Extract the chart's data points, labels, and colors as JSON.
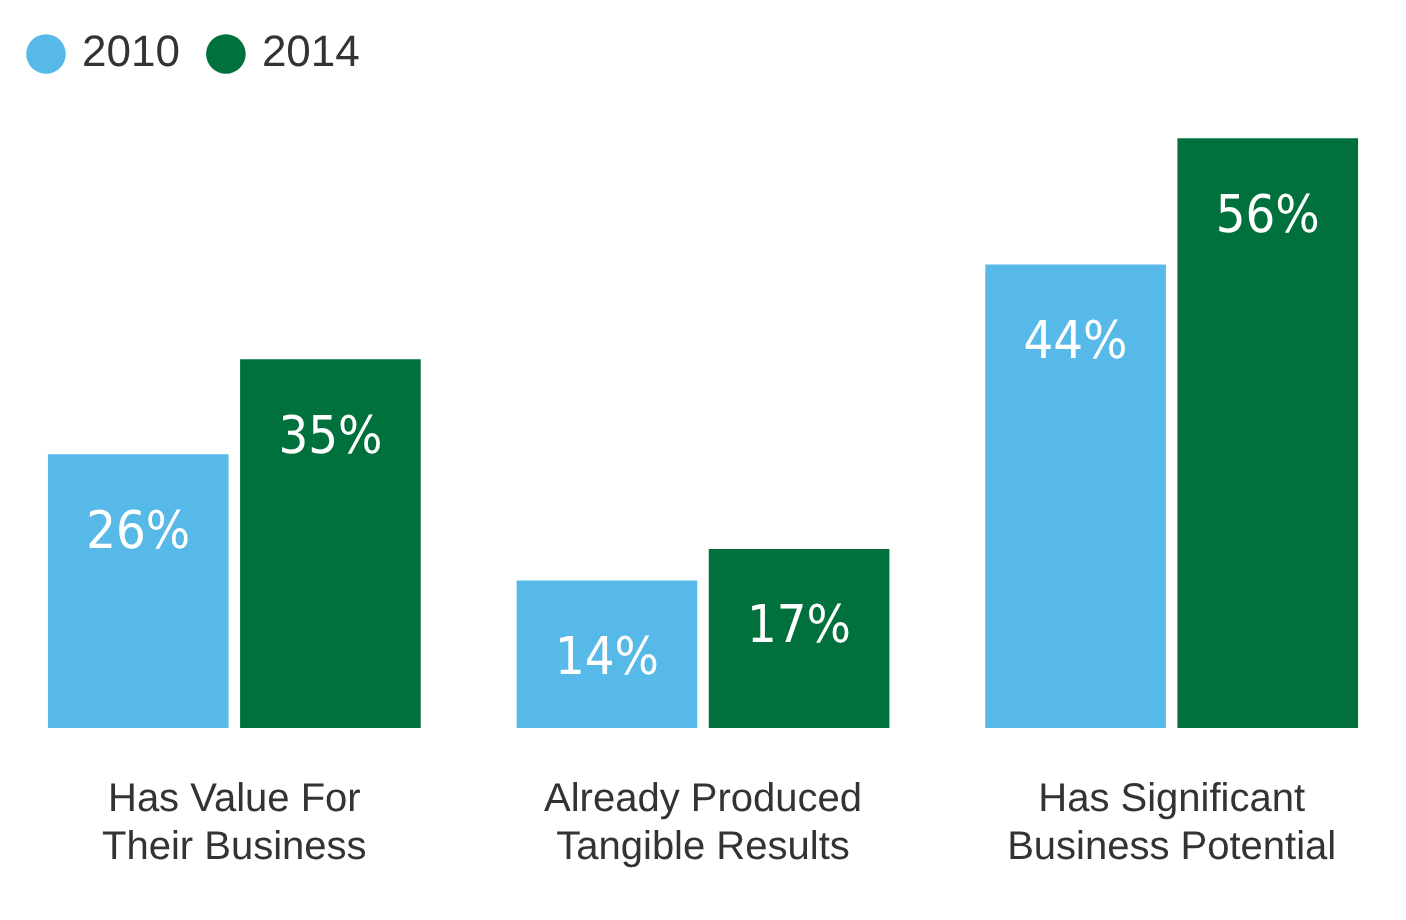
{
  "chart_data": {
    "type": "bar",
    "categories": [
      "Has Value For Their Business",
      "Already Produced Tangible Results",
      "Has Significant Business Potential"
    ],
    "series": [
      {
        "name": "2010",
        "color": "#56b9e8",
        "values": [
          26,
          14,
          44
        ],
        "value_labels": [
          "26%",
          "14%",
          "44%"
        ]
      },
      {
        "name": "2014",
        "color": "#00703c",
        "values": [
          35,
          17,
          56
        ],
        "value_labels": [
          "35%",
          "17%",
          "56%"
        ]
      }
    ],
    "legend": "top left",
    "grid": false
  }
}
